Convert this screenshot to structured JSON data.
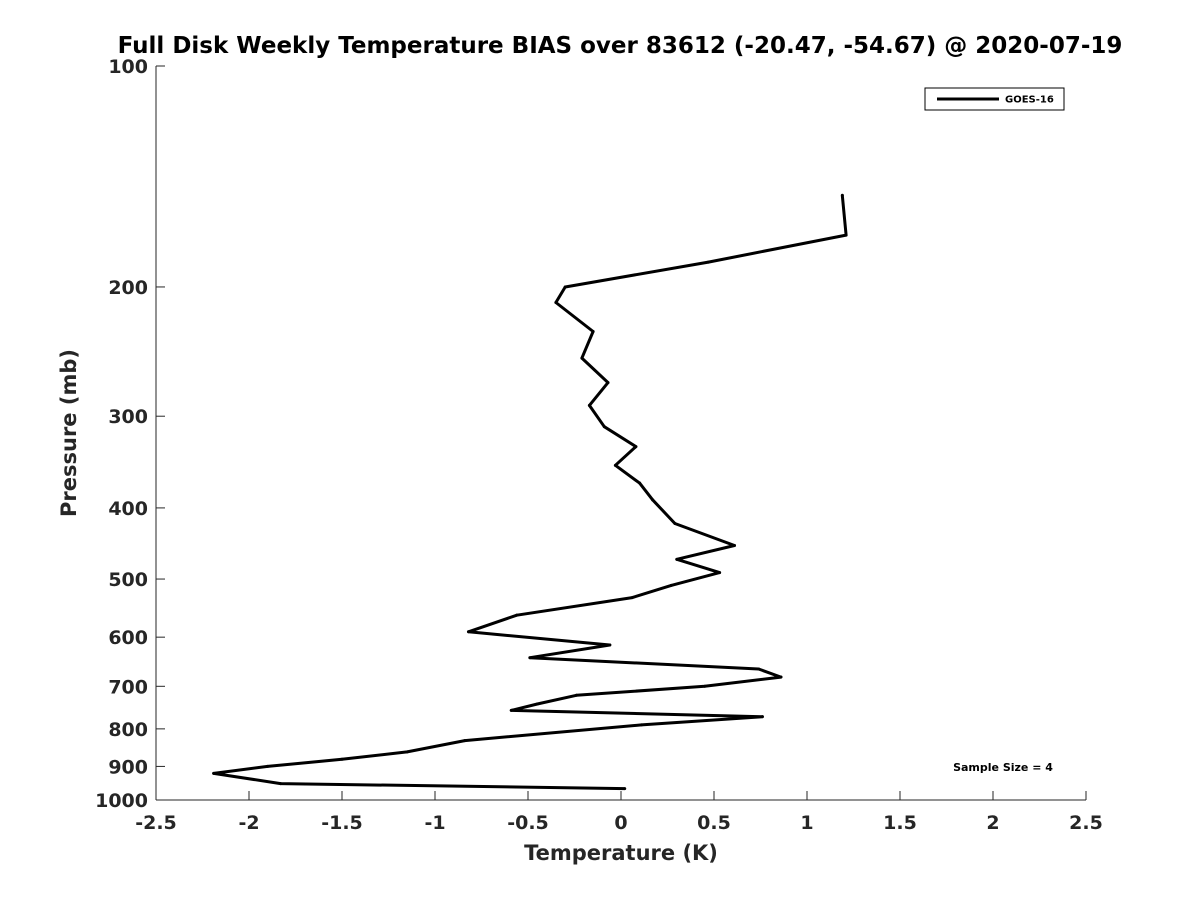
{
  "chart_data": {
    "type": "line",
    "title": "Full Disk Weekly Temperature BIAS over 83612 (-20.47, -54.67) @ 2020-07-19",
    "xlabel": "Temperature (K)",
    "ylabel": "Pressure (mb)",
    "xlim": [
      -2.5,
      2.5
    ],
    "ylim": [
      100,
      1000
    ],
    "y_scale": "log",
    "y_reversed": true,
    "x_ticks": [
      -2.5,
      -2,
      -1.5,
      -1,
      -0.5,
      0,
      0.5,
      1,
      1.5,
      2,
      2.5
    ],
    "x_tick_labels": [
      "-2.5",
      "-2",
      "-1.5",
      "-1",
      "-0.5",
      "0",
      "0.5",
      "1",
      "1.5",
      "2",
      "2.5"
    ],
    "y_ticks": [
      100,
      200,
      300,
      400,
      500,
      600,
      700,
      800,
      900,
      1000
    ],
    "y_tick_labels": [
      "100",
      "200",
      "300",
      "400",
      "500",
      "600",
      "700",
      "800",
      "900",
      "1000"
    ],
    "grid": false,
    "legend_position": "top-right",
    "annotation": "Sample Size = 4",
    "line_color": "#000000",
    "series": [
      {
        "name": "GOES-16",
        "x": [
          1.19,
          1.21,
          0.47,
          -0.3,
          -0.35,
          -0.15,
          -0.21,
          -0.07,
          -0.17,
          -0.09,
          0.08,
          -0.03,
          0.1,
          0.17,
          0.29,
          0.61,
          0.3,
          0.53,
          0.27,
          0.06,
          -0.56,
          -0.82,
          -0.06,
          -0.49,
          0.74,
          0.86,
          0.45,
          -0.24,
          -0.45,
          -0.59,
          0.76,
          0.11,
          -0.84,
          -1.15,
          -1.5,
          -1.9,
          -2.19,
          -1.83,
          0.02
        ],
        "y": [
          150,
          170,
          185,
          200,
          210,
          230,
          250,
          270,
          290,
          310,
          330,
          350,
          370,
          390,
          420,
          450,
          470,
          490,
          510,
          530,
          560,
          590,
          615,
          640,
          663,
          680,
          700,
          720,
          740,
          755,
          770,
          790,
          830,
          860,
          880,
          900,
          920,
          950,
          965
        ]
      }
    ]
  }
}
